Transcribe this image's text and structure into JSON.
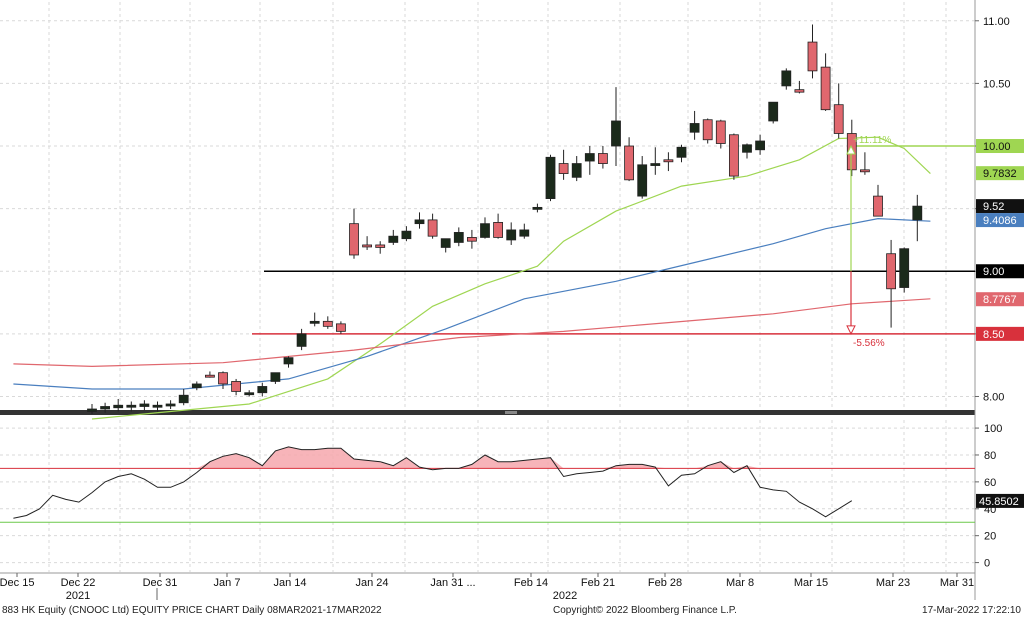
{
  "footer": {
    "left": "883 HK Equity (CNOOC Ltd) EQUITY PRICE CHART  Daily 08MAR2021-17MAR2022",
    "center": "Copyright© 2022 Bloomberg Finance L.P.",
    "right": "17-Mar-2022  17:22:10"
  },
  "colors": {
    "up_candle": "#1b2a1b",
    "down_candle": "#e0676e",
    "ma_short": "#9fd652",
    "ma_mid": "#4a7fbf",
    "ma_long": "#e0676e",
    "black_level": "#000000",
    "red_level": "#d8313c",
    "rsi_line": "#222222",
    "rsi_over": "#f6a7ad"
  },
  "chart_data": [
    {
      "type": "candlestick",
      "ylim": [
        7.9,
        11.15
      ],
      "y_ticks": [
        8.0,
        8.5,
        9.0,
        9.5,
        10.0,
        10.5,
        11.0
      ],
      "y_tick_labels": [
        "8.00",
        "8.50",
        "9.00",
        "9.50",
        "10.00",
        "10.50",
        "11.00"
      ],
      "x_axis": {
        "tick_labels": [
          "Dec 15",
          "Dec 22",
          "Dec 31",
          "Jan 7",
          "Jan 14",
          "Jan 24",
          "Jan 31 ...",
          "Feb 14",
          "Feb 21",
          "Feb 28",
          "Mar 8",
          "Mar 15",
          "Mar 23",
          "Mar 31"
        ],
        "year_labels": [
          "2021",
          "2022"
        ]
      },
      "candles": [
        {
          "date": "2021-12-13",
          "open": 7.88,
          "high": 7.94,
          "low": 7.86,
          "close": 7.9
        },
        {
          "date": "2021-12-14",
          "open": 7.9,
          "high": 7.95,
          "low": 7.87,
          "close": 7.92
        },
        {
          "date": "2021-12-15",
          "open": 7.91,
          "high": 7.98,
          "low": 7.88,
          "close": 7.93
        },
        {
          "date": "2021-12-16",
          "open": 7.92,
          "high": 7.96,
          "low": 7.88,
          "close": 7.93
        },
        {
          "date": "2021-12-17",
          "open": 7.92,
          "high": 7.97,
          "low": 7.89,
          "close": 7.94
        },
        {
          "date": "2021-12-20",
          "open": 7.92,
          "high": 7.96,
          "low": 7.88,
          "close": 7.93
        },
        {
          "date": "2021-12-21",
          "open": 7.93,
          "high": 7.97,
          "low": 7.9,
          "close": 7.94
        },
        {
          "date": "2021-12-22",
          "open": 7.95,
          "high": 8.06,
          "low": 7.93,
          "close": 8.01
        },
        {
          "date": "2021-12-23",
          "open": 8.07,
          "high": 8.12,
          "low": 8.05,
          "close": 8.1
        },
        {
          "date": "2021-12-24",
          "open": 8.17,
          "high": 8.2,
          "low": 8.15,
          "close": 8.16
        },
        {
          "date": "2021-12-27",
          "open": 8.19,
          "high": 8.2,
          "low": 8.06,
          "close": 8.1
        },
        {
          "date": "2021-12-28",
          "open": 8.12,
          "high": 8.14,
          "low": 8.01,
          "close": 8.04
        },
        {
          "date": "2021-12-29",
          "open": 8.02,
          "high": 8.05,
          "low": 8.0,
          "close": 8.03
        },
        {
          "date": "2021-12-30",
          "open": 8.03,
          "high": 8.11,
          "low": 8.0,
          "close": 8.08
        },
        {
          "date": "2021-12-31",
          "open": 8.12,
          "high": 8.19,
          "low": 8.1,
          "close": 8.19
        },
        {
          "date": "2022-01-03",
          "open": 8.26,
          "high": 8.32,
          "low": 8.23,
          "close": 8.31
        },
        {
          "date": "2022-01-04",
          "open": 8.4,
          "high": 8.54,
          "low": 8.37,
          "close": 8.5
        },
        {
          "date": "2022-01-05",
          "open": 8.6,
          "high": 8.67,
          "low": 8.56,
          "close": 8.6
        },
        {
          "date": "2022-01-06",
          "open": 8.6,
          "high": 8.64,
          "low": 8.54,
          "close": 8.56
        },
        {
          "date": "2022-01-07",
          "open": 8.58,
          "high": 8.6,
          "low": 8.5,
          "close": 8.52
        },
        {
          "date": "2022-01-10",
          "open": 9.38,
          "high": 9.5,
          "low": 9.1,
          "close": 9.13
        },
        {
          "date": "2022-01-11",
          "open": 9.21,
          "high": 9.28,
          "low": 9.17,
          "close": 9.2
        },
        {
          "date": "2022-01-12",
          "open": 9.21,
          "high": 9.24,
          "low": 9.14,
          "close": 9.19
        },
        {
          "date": "2022-01-13",
          "open": 9.23,
          "high": 9.33,
          "low": 9.21,
          "close": 9.28
        },
        {
          "date": "2022-01-14",
          "open": 9.26,
          "high": 9.36,
          "low": 9.24,
          "close": 9.32
        },
        {
          "date": "2022-01-17",
          "open": 9.38,
          "high": 9.47,
          "low": 9.34,
          "close": 9.41
        },
        {
          "date": "2022-01-18",
          "open": 9.41,
          "high": 9.46,
          "low": 9.26,
          "close": 9.28
        },
        {
          "date": "2022-01-19",
          "open": 9.19,
          "high": 9.26,
          "low": 9.15,
          "close": 9.26
        },
        {
          "date": "2022-01-20",
          "open": 9.23,
          "high": 9.35,
          "low": 9.2,
          "close": 9.31
        },
        {
          "date": "2022-01-21",
          "open": 9.27,
          "high": 9.33,
          "low": 9.18,
          "close": 9.24
        },
        {
          "date": "2022-01-24",
          "open": 9.27,
          "high": 9.43,
          "low": 9.26,
          "close": 9.38
        },
        {
          "date": "2022-01-25",
          "open": 9.39,
          "high": 9.46,
          "low": 9.26,
          "close": 9.27
        },
        {
          "date": "2022-01-26",
          "open": 9.25,
          "high": 9.39,
          "low": 9.21,
          "close": 9.33
        },
        {
          "date": "2022-01-27",
          "open": 9.28,
          "high": 9.38,
          "low": 9.26,
          "close": 9.33
        },
        {
          "date": "2022-01-28",
          "open": 9.5,
          "high": 9.54,
          "low": 9.47,
          "close": 9.51
        },
        {
          "date": "2022-02-07",
          "open": 9.58,
          "high": 9.93,
          "low": 9.56,
          "close": 9.91
        },
        {
          "date": "2022-02-08",
          "open": 9.86,
          "high": 9.97,
          "low": 9.73,
          "close": 9.78
        },
        {
          "date": "2022-02-09",
          "open": 9.75,
          "high": 9.92,
          "low": 9.72,
          "close": 9.86
        },
        {
          "date": "2022-02-10",
          "open": 9.88,
          "high": 10.0,
          "low": 9.77,
          "close": 9.94
        },
        {
          "date": "2022-02-11",
          "open": 9.94,
          "high": 10.0,
          "low": 9.82,
          "close": 9.86
        },
        {
          "date": "2022-02-14",
          "open": 10.0,
          "high": 10.47,
          "low": 9.84,
          "close": 10.2
        },
        {
          "date": "2022-02-15",
          "open": 10.0,
          "high": 10.07,
          "low": 9.72,
          "close": 9.73
        },
        {
          "date": "2022-02-16",
          "open": 9.6,
          "high": 9.92,
          "low": 9.58,
          "close": 9.85
        },
        {
          "date": "2022-02-17",
          "open": 9.85,
          "high": 9.99,
          "low": 9.77,
          "close": 9.86
        },
        {
          "date": "2022-02-18",
          "open": 9.89,
          "high": 9.95,
          "low": 9.8,
          "close": 9.88
        },
        {
          "date": "2022-02-21",
          "open": 9.91,
          "high": 10.01,
          "low": 9.87,
          "close": 9.99
        },
        {
          "date": "2022-02-22",
          "open": 10.11,
          "high": 10.28,
          "low": 10.05,
          "close": 10.18
        },
        {
          "date": "2022-02-23",
          "open": 10.21,
          "high": 10.22,
          "low": 10.02,
          "close": 10.05
        },
        {
          "date": "2022-02-24",
          "open": 10.2,
          "high": 10.21,
          "low": 9.98,
          "close": 10.02
        },
        {
          "date": "2022-02-25",
          "open": 10.09,
          "high": 10.1,
          "low": 9.73,
          "close": 9.76
        },
        {
          "date": "2022-02-28",
          "open": 9.95,
          "high": 10.02,
          "low": 9.9,
          "close": 10.01
        },
        {
          "date": "2022-03-01",
          "open": 9.97,
          "high": 10.09,
          "low": 9.93,
          "close": 10.04
        },
        {
          "date": "2022-03-02",
          "open": 10.2,
          "high": 10.35,
          "low": 10.18,
          "close": 10.35
        },
        {
          "date": "2022-03-03",
          "open": 10.48,
          "high": 10.62,
          "low": 10.45,
          "close": 10.6
        },
        {
          "date": "2022-03-04",
          "open": 10.45,
          "high": 10.52,
          "low": 10.42,
          "close": 10.43
        },
        {
          "date": "2022-03-07",
          "open": 10.83,
          "high": 10.97,
          "low": 10.54,
          "close": 10.6
        },
        {
          "date": "2022-03-08",
          "open": 10.63,
          "high": 10.74,
          "low": 10.28,
          "close": 10.29
        },
        {
          "date": "2022-03-09",
          "open": 10.33,
          "high": 10.5,
          "low": 10.06,
          "close": 10.1
        },
        {
          "date": "2022-03-10",
          "open": 10.1,
          "high": 10.21,
          "low": 9.76,
          "close": 9.81
        },
        {
          "date": "2022-03-11",
          "open": 9.81,
          "high": 9.95,
          "low": 9.77,
          "close": 9.8
        },
        {
          "date": "2022-03-14",
          "open": 9.6,
          "high": 9.69,
          "low": 9.44,
          "close": 9.44
        },
        {
          "date": "2022-03-15",
          "open": 9.14,
          "high": 9.25,
          "low": 8.55,
          "close": 8.86
        },
        {
          "date": "2022-03-16",
          "open": 8.87,
          "high": 9.19,
          "low": 8.83,
          "close": 9.18
        },
        {
          "date": "2022-03-17",
          "open": 9.41,
          "high": 9.61,
          "low": 9.24,
          "close": 9.52
        }
      ],
      "moving_averages": [
        {
          "key": "ma_short",
          "last_value": 9.7832,
          "last_label": "9.7832",
          "points": [
            [
              0,
              7.82
            ],
            [
              12,
              7.94
            ],
            [
              18,
              8.14
            ],
            [
              22,
              8.42
            ],
            [
              26,
              8.72
            ],
            [
              30,
              8.9
            ],
            [
              34,
              9.04
            ],
            [
              36,
              9.24
            ],
            [
              40,
              9.48
            ],
            [
              45,
              9.68
            ],
            [
              50,
              9.76
            ],
            [
              54,
              9.89
            ],
            [
              57,
              10.06
            ],
            [
              60,
              10.07
            ],
            [
              62,
              9.98
            ],
            [
              64,
              9.78
            ]
          ]
        },
        {
          "key": "ma_mid",
          "last_value": 9.4086,
          "last_label": "9.4086",
          "points": [
            [
              -6,
              8.1
            ],
            [
              0,
              8.06
            ],
            [
              7,
              8.06
            ],
            [
              15,
              8.14
            ],
            [
              21,
              8.32
            ],
            [
              27,
              8.54
            ],
            [
              33,
              8.78
            ],
            [
              40,
              8.92
            ],
            [
              46,
              9.07
            ],
            [
              52,
              9.22
            ],
            [
              56,
              9.34
            ],
            [
              60,
              9.42
            ],
            [
              64,
              9.4
            ]
          ]
        },
        {
          "key": "ma_long",
          "last_value": 8.7767,
          "last_label": "8.7767",
          "points": [
            [
              -6,
              8.26
            ],
            [
              0,
              8.24
            ],
            [
              10,
              8.27
            ],
            [
              20,
              8.37
            ],
            [
              28,
              8.47
            ],
            [
              36,
              8.52
            ],
            [
              44,
              8.59
            ],
            [
              52,
              8.66
            ],
            [
              58,
              8.74
            ],
            [
              64,
              8.78
            ]
          ]
        }
      ],
      "levels": [
        {
          "key": "black_level",
          "value": 9.0,
          "label": "9.00"
        },
        {
          "key": "red_level",
          "value": 8.5,
          "label": "8.50"
        },
        {
          "key": "ma_short",
          "value": 10.0,
          "label": "10.00"
        }
      ],
      "last_price": {
        "value": 9.52,
        "label": "9.52"
      },
      "annotations": [
        {
          "text": "+11.11%",
          "from": 9.0,
          "to": 10.0,
          "key": "ma_short"
        },
        {
          "text": "-5.56%",
          "from": 9.0,
          "to": 8.5,
          "key": "red_level"
        }
      ]
    },
    {
      "type": "line",
      "indicator": "RSI",
      "ylim": [
        -7,
        106
      ],
      "y_ticks": [
        0,
        20,
        40,
        60,
        80,
        100
      ],
      "y_tick_labels": [
        "0",
        "20",
        "40",
        "60",
        "80",
        "100"
      ],
      "overbought": 70,
      "oversold": 30,
      "last_value": 45.8502,
      "last_label": "45.8502",
      "x_start": -6,
      "values": [
        33,
        35,
        40,
        50,
        47,
        45,
        52,
        60,
        64,
        66,
        62,
        56,
        56,
        60,
        67,
        75,
        79,
        81,
        78,
        72,
        83,
        86,
        84,
        84,
        85,
        85,
        77,
        76,
        75,
        72,
        78,
        71,
        69,
        70,
        70,
        73,
        80,
        75,
        75,
        76,
        77,
        78,
        64,
        66,
        67,
        68,
        72,
        73,
        73,
        71,
        57,
        65,
        66,
        72,
        75,
        67,
        72,
        56,
        54,
        53,
        45,
        40,
        34,
        40,
        46
      ]
    }
  ]
}
